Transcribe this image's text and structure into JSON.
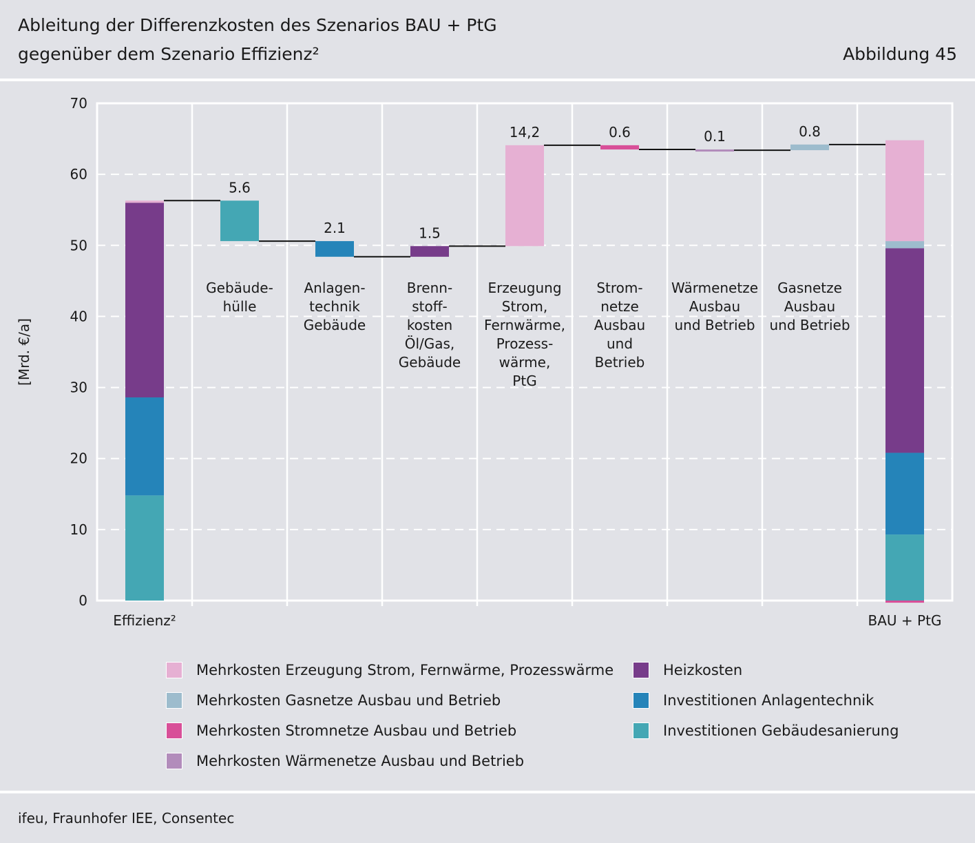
{
  "header": {
    "title_line1": "Ableitung der Differenzkosten des Szenarios BAU + PtG",
    "title_line2": "gegenüber dem Szenario Effizienz²",
    "figure_label": "Abbildung 45"
  },
  "footer": {
    "source": "ifeu, Fraunhofer IEE, Consentec"
  },
  "colors": {
    "erzeugung": "#e6b0d3",
    "gasnetze": "#9dbccd",
    "stromnetze": "#d84f98",
    "waermenetze": "#b28cbb",
    "heizkosten": "#773c8a",
    "anlagentechnik": "#2584b9",
    "gebaeudesanierung": "#44a7b4"
  },
  "chart_data": {
    "type": "bar",
    "subtype": "waterfall",
    "ylabel": "[Mrd. €/a]",
    "ylim": [
      0,
      70
    ],
    "yticks": [
      "0",
      "10",
      "20",
      "30",
      "40",
      "50",
      "60",
      "70"
    ],
    "start": {
      "label": "Effizienz²",
      "stack": [
        {
          "series": "gebaeudesanierung",
          "value": 14.8
        },
        {
          "series": "anlagentechnik",
          "value": 13.8
        },
        {
          "series": "heizkosten",
          "value": 27.4
        },
        {
          "series": "erzeugung",
          "value": 0.3
        }
      ]
    },
    "steps": [
      {
        "label": "Gebäude-\nhülle",
        "value_label": "5.6",
        "series": "gebaeudesanierung",
        "from": 56.3,
        "to": 50.6
      },
      {
        "label": "Anlagen-\ntechnik\nGebäude",
        "value_label": "2.1",
        "series": "anlagentechnik",
        "from": 50.6,
        "to": 48.4
      },
      {
        "label": "Brenn-\nstoff-\nkosten\nÖl/Gas,\nGebäude",
        "value_label": "1.5",
        "series": "heizkosten",
        "from": 48.4,
        "to": 49.9
      },
      {
        "label": "Erzeugung\nStrom,\nFernwärme,\nProzess-\nwärme,\nPtG",
        "value_label": "14,2",
        "series": "erzeugung",
        "from": 49.9,
        "to": 64.1
      },
      {
        "label": "Strom-\nnetze\nAusbau\nund\nBetrieb",
        "value_label": "0.6",
        "series": "stromnetze",
        "from": 64.1,
        "to": 63.5
      },
      {
        "label": "Wärmenetze\nAusbau\nund Betrieb",
        "value_label": "0.1",
        "series": "waermenetze",
        "from": 63.5,
        "to": 63.4
      },
      {
        "label": "Gasnetze\nAusbau\nund Betrieb",
        "value_label": "0.8",
        "series": "gasnetze",
        "from": 63.4,
        "to": 64.2
      }
    ],
    "end": {
      "label": "BAU + PtG",
      "stack": [
        {
          "series": "stromnetze",
          "value": -0.3
        },
        {
          "series": "gebaeudesanierung",
          "value": 9.3
        },
        {
          "series": "anlagentechnik",
          "value": 11.5
        },
        {
          "series": "heizkosten",
          "value": 28.8
        },
        {
          "series": "gasnetze",
          "value": 1.0
        },
        {
          "series": "erzeugung",
          "value": 14.2
        }
      ]
    },
    "legend": [
      {
        "series": "erzeugung",
        "label": "Mehrkosten Erzeugung Strom, Fernwärme, Prozesswärme"
      },
      {
        "series": "gasnetze",
        "label": "Mehrkosten Gasnetze Ausbau und Betrieb"
      },
      {
        "series": "stromnetze",
        "label": "Mehrkosten Stromnetze Ausbau und Betrieb"
      },
      {
        "series": "waermenetze",
        "label": "Mehrkosten Wärmenetze Ausbau und Betrieb"
      },
      {
        "series": "heizkosten",
        "label": "Heizkosten"
      },
      {
        "series": "anlagentechnik",
        "label": "Investitionen Anlagentechnik"
      },
      {
        "series": "gebaeudesanierung",
        "label": "Investitionen Gebäudesanierung"
      }
    ]
  }
}
